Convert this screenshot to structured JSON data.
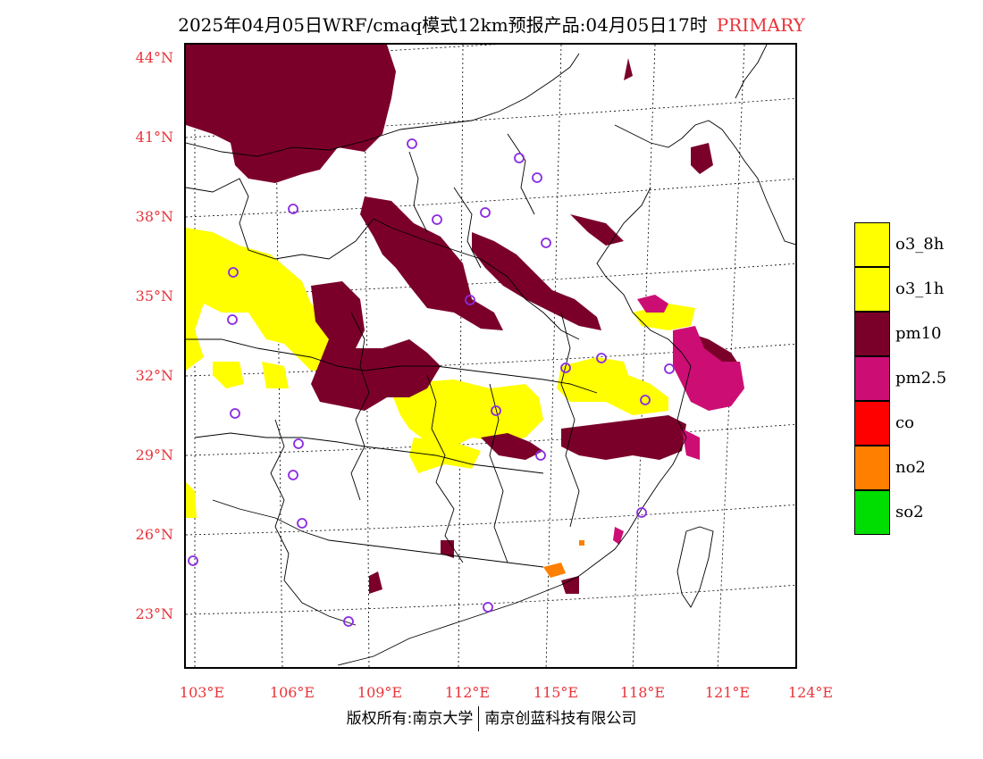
{
  "title": {
    "main": "2025年04月05日WRF/cmaq模式12km预报产品:04月05日17时",
    "tag": "PRIMARY"
  },
  "lat_labels": [
    "44°N",
    "41°N",
    "38°N",
    "35°N",
    "32°N",
    "29°N",
    "26°N",
    "23°N"
  ],
  "lon_labels": [
    "103°E",
    "106°E",
    "109°E",
    "112°E",
    "115°E",
    "118°E",
    "121°E",
    "124°E"
  ],
  "legend": [
    {
      "label": "o3_8h",
      "color": "#ffff00"
    },
    {
      "label": "o3_1h",
      "color": "#ffff00"
    },
    {
      "label": "pm10",
      "color": "#7b0029"
    },
    {
      "label": "pm2.5",
      "color": "#cc0e74"
    },
    {
      "label": "co",
      "color": "#ff0000"
    },
    {
      "label": "no2",
      "color": "#ff7f00"
    },
    {
      "label": "so2",
      "color": "#00dd00"
    }
  ],
  "copyright": {
    "left": "版权所有:南京大学",
    "right": "南京创蓝科技有限公司"
  },
  "colors": {
    "axis_label": "#e8343a",
    "station_marker": "#8a2be2"
  }
}
